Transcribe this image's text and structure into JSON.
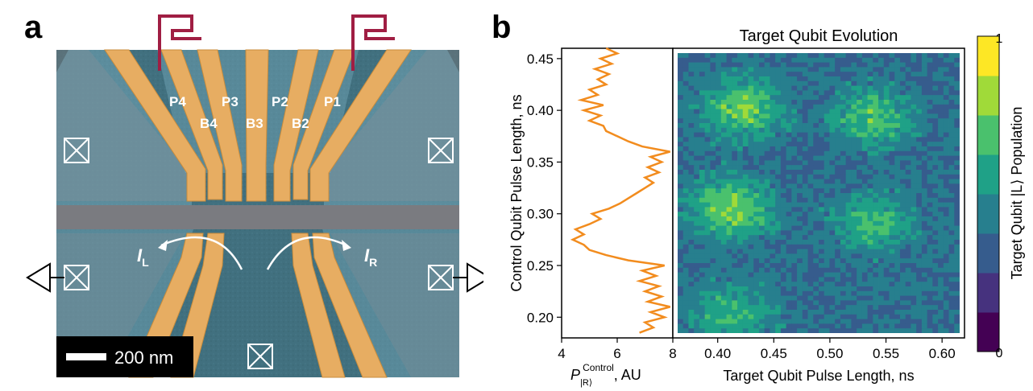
{
  "panel_a": {
    "letter": "a",
    "gate_labels_top": [
      "P4",
      "P3",
      "P2",
      "P1"
    ],
    "gate_labels_bottom": [
      "B4",
      "B3",
      "B2"
    ],
    "current_left": {
      "symbol": "I",
      "sub": "L"
    },
    "current_right": {
      "symbol": "I",
      "sub": "R"
    },
    "scalebar": "200 nm",
    "colors": {
      "gate": "#e7ad62",
      "substrate": "#41707f",
      "channel": "#7a7b80",
      "wire": "#a01e43"
    }
  },
  "panel_b": {
    "letter": "b",
    "title": "Target Qubit Evolution",
    "ylabel": "Control Qubit Pulse Length, ns",
    "xlabel": "Target Qubit Pulse Length, ns",
    "line_xlabel_prefix": "P",
    "line_xlabel_sub": "|R⟩",
    "line_xlabel_sup": "Control",
    "line_xlabel_suffix": ", AU",
    "colorbar_label": "Target Qubit |L⟩ Population",
    "colorbar_ticks": [
      "1",
      "0"
    ]
  },
  "chart_data": [
    {
      "type": "line",
      "xlabel": "P|R⟩ Control, AU",
      "ylabel": "Control Qubit Pulse Length, ns",
      "xlim": [
        4,
        8
      ],
      "ylim": [
        0.18,
        0.46
      ],
      "x_ticks": [
        "4",
        "6",
        "8"
      ],
      "y_ticks": [
        "0.20",
        "0.25",
        "0.30",
        "0.35",
        "0.40",
        "0.45"
      ],
      "color": "#f28c1e",
      "points": [
        [
          6.8,
          0.185
        ],
        [
          7.3,
          0.19
        ],
        [
          7.0,
          0.195
        ],
        [
          7.7,
          0.2
        ],
        [
          7.2,
          0.205
        ],
        [
          7.9,
          0.21
        ],
        [
          7.1,
          0.215
        ],
        [
          7.6,
          0.22
        ],
        [
          7.0,
          0.225
        ],
        [
          7.5,
          0.23
        ],
        [
          6.8,
          0.235
        ],
        [
          7.4,
          0.24
        ],
        [
          6.9,
          0.245
        ],
        [
          7.7,
          0.25
        ],
        [
          6.4,
          0.255
        ],
        [
          5.6,
          0.26
        ],
        [
          5.0,
          0.265
        ],
        [
          4.8,
          0.27
        ],
        [
          4.4,
          0.275
        ],
        [
          4.8,
          0.28
        ],
        [
          4.5,
          0.285
        ],
        [
          5.0,
          0.29
        ],
        [
          5.4,
          0.295
        ],
        [
          5.1,
          0.3
        ],
        [
          5.7,
          0.305
        ],
        [
          6.1,
          0.31
        ],
        [
          6.4,
          0.315
        ],
        [
          6.7,
          0.32
        ],
        [
          7.0,
          0.325
        ],
        [
          7.3,
          0.33
        ],
        [
          7.0,
          0.335
        ],
        [
          7.5,
          0.34
        ],
        [
          7.1,
          0.345
        ],
        [
          7.6,
          0.35
        ],
        [
          7.2,
          0.355
        ],
        [
          7.9,
          0.36
        ],
        [
          6.9,
          0.365
        ],
        [
          6.4,
          0.37
        ],
        [
          6.0,
          0.375
        ],
        [
          5.6,
          0.38
        ],
        [
          5.5,
          0.385
        ],
        [
          5.0,
          0.39
        ],
        [
          5.4,
          0.395
        ],
        [
          4.8,
          0.4
        ],
        [
          5.5,
          0.405
        ],
        [
          4.7,
          0.41
        ],
        [
          5.3,
          0.415
        ],
        [
          5.0,
          0.42
        ],
        [
          5.6,
          0.425
        ],
        [
          5.3,
          0.43
        ],
        [
          5.7,
          0.435
        ],
        [
          5.2,
          0.44
        ],
        [
          5.8,
          0.445
        ],
        [
          5.4,
          0.45
        ],
        [
          6.0,
          0.455
        ],
        [
          5.6,
          0.46
        ]
      ]
    },
    {
      "type": "heatmap",
      "title": "Target Qubit Evolution",
      "xlabel": "Target Qubit Pulse Length, ns",
      "ylabel": "Control Qubit Pulse Length, ns",
      "xlim": [
        0.36,
        0.62
      ],
      "ylim": [
        0.18,
        0.46
      ],
      "x_ticks": [
        "0.40",
        "0.45",
        "0.50",
        "0.55",
        "0.60"
      ],
      "colorbar": {
        "label": "Target Qubit |L⟩ Population",
        "range": [
          0,
          1
        ],
        "colors": [
          "#440154",
          "#46327e",
          "#365c8d",
          "#277f8e",
          "#1fa187",
          "#4ac16d",
          "#a0da39",
          "#fde725"
        ]
      },
      "hotspots": [
        {
          "x": 0.42,
          "y": 0.405,
          "value": 0.75
        },
        {
          "x": 0.54,
          "y": 0.395,
          "value": 0.7
        },
        {
          "x": 0.41,
          "y": 0.305,
          "value": 0.8
        },
        {
          "x": 0.54,
          "y": 0.29,
          "value": 0.65
        },
        {
          "x": 0.41,
          "y": 0.2,
          "value": 0.65
        }
      ],
      "baseline_value": 0.38
    }
  ]
}
